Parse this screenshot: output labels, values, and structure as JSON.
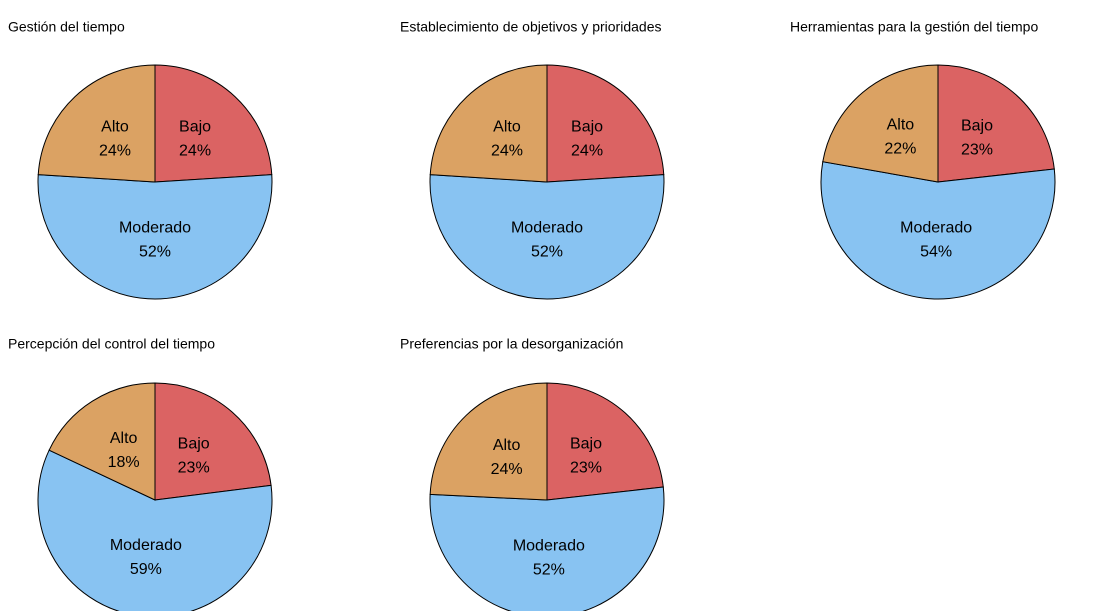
{
  "chart_data": [
    {
      "type": "pie",
      "title": "Gestión del tiempo",
      "categories": [
        "Bajo",
        "Moderado",
        "Alto"
      ],
      "values": [
        24,
        52,
        24
      ],
      "value_labels": [
        "24%",
        "52%",
        "24%"
      ],
      "colors": [
        "#db6363",
        "#88c3f2",
        "#dba263"
      ]
    },
    {
      "type": "pie",
      "title": "Establecimiento de objetivos y prioridades",
      "categories": [
        "Bajo",
        "Moderado",
        "Alto"
      ],
      "values": [
        24,
        52,
        24
      ],
      "value_labels": [
        "24%",
        "52%",
        "24%"
      ],
      "colors": [
        "#db6363",
        "#88c3f2",
        "#dba263"
      ]
    },
    {
      "type": "pie",
      "title": "Herramientas para la gestión del tiempo",
      "categories": [
        "Bajo",
        "Moderado",
        "Alto"
      ],
      "values": [
        23,
        54,
        22
      ],
      "value_labels": [
        "23%",
        "54%",
        "22%"
      ],
      "colors": [
        "#db6363",
        "#88c3f2",
        "#dba263"
      ]
    },
    {
      "type": "pie",
      "title": "Percepción del control del tiempo",
      "categories": [
        "Bajo",
        "Moderado",
        "Alto"
      ],
      "values": [
        23,
        59,
        18
      ],
      "value_labels": [
        "23%",
        "59%",
        "18%"
      ],
      "colors": [
        "#db6363",
        "#88c3f2",
        "#dba263"
      ]
    },
    {
      "type": "pie",
      "title": "Preferencias por la desorganización",
      "categories": [
        "Bajo",
        "Moderado",
        "Alto"
      ],
      "values": [
        23,
        52,
        24
      ],
      "value_labels": [
        "23%",
        "52%",
        "24%"
      ],
      "colors": [
        "#db6363",
        "#88c3f2",
        "#dba263"
      ]
    }
  ]
}
